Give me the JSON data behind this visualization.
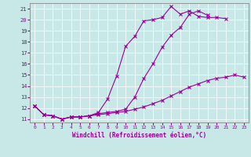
{
  "xlabel": "Windchill (Refroidissement éolien,°C)",
  "background_color": "#c8e8e8",
  "line_color": "#990099",
  "grid_color": "#ffffff",
  "xlim": [
    -0.5,
    23.5
  ],
  "ylim": [
    10.7,
    21.5
  ],
  "yticks": [
    11,
    12,
    13,
    14,
    15,
    16,
    17,
    18,
    19,
    20,
    21
  ],
  "xticks": [
    0,
    1,
    2,
    3,
    4,
    5,
    6,
    7,
    8,
    9,
    10,
    11,
    12,
    13,
    14,
    15,
    16,
    17,
    18,
    19,
    20,
    21,
    22,
    23
  ],
  "series": [
    {
      "x": [
        0,
        1,
        2,
        3,
        4,
        5,
        6,
        7,
        8,
        9,
        10,
        11,
        12,
        13,
        14,
        15,
        16,
        17,
        18,
        19,
        20,
        21,
        22,
        23
      ],
      "y": [
        12.2,
        11.4,
        11.3,
        11.0,
        11.2,
        11.2,
        11.3,
        11.4,
        11.5,
        11.6,
        11.7,
        11.9,
        12.1,
        12.4,
        12.7,
        13.1,
        13.5,
        13.9,
        14.2,
        14.5,
        14.7,
        14.8,
        15.0,
        14.8
      ]
    },
    {
      "x": [
        0,
        1,
        2,
        3,
        4,
        5,
        6,
        7,
        8,
        9,
        10,
        11,
        12,
        13,
        14,
        15,
        16,
        17,
        18,
        19,
        20,
        21
      ],
      "y": [
        12.2,
        11.4,
        11.3,
        11.0,
        11.2,
        11.2,
        11.3,
        11.6,
        12.8,
        14.9,
        17.6,
        18.5,
        19.9,
        20.0,
        20.2,
        21.2,
        20.5,
        20.8,
        20.3,
        20.2,
        20.2,
        20.1
      ]
    },
    {
      "x": [
        0,
        1,
        2,
        3,
        4,
        5,
        6,
        7,
        8,
        9,
        10,
        11,
        12,
        13,
        14,
        15,
        16,
        17,
        18,
        19
      ],
      "y": [
        12.2,
        11.4,
        11.3,
        11.0,
        11.2,
        11.2,
        11.3,
        11.5,
        11.6,
        11.7,
        11.9,
        13.0,
        14.7,
        16.0,
        17.5,
        18.6,
        19.3,
        20.5,
        20.8,
        20.4
      ]
    }
  ]
}
